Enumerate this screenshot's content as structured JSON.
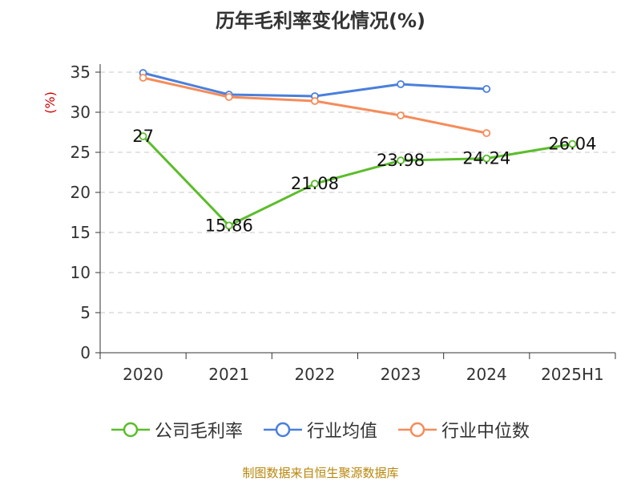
{
  "chart_data": {
    "type": "line",
    "title": "历年毛利率变化情况(%)",
    "ylabel": "(%)",
    "categories": [
      "2020",
      "2021",
      "2022",
      "2023",
      "2024",
      "2025H1"
    ],
    "ylim": [
      0,
      35
    ],
    "yticks": [
      0,
      5,
      10,
      15,
      20,
      25,
      30,
      35
    ],
    "grid": true,
    "legend_position": "bottom",
    "series": [
      {
        "name": "公司毛利率",
        "color": "#5bbd2b",
        "labeled": true,
        "values": [
          27,
          15.86,
          21.08,
          23.98,
          24.24,
          26.04
        ],
        "labels": [
          "27",
          "15.86",
          "21.08",
          "23.98",
          "24.24",
          "26.04"
        ]
      },
      {
        "name": "行业均值",
        "color": "#4a7fdc",
        "labeled": false,
        "values": [
          34.9,
          32.2,
          32.0,
          33.5,
          32.9,
          null
        ]
      },
      {
        "name": "行业中位数",
        "color": "#f58c5a",
        "labeled": false,
        "values": [
          34.3,
          31.9,
          31.4,
          29.6,
          27.4,
          null
        ]
      }
    ]
  },
  "source": "制图数据来自恒生聚源数据库"
}
